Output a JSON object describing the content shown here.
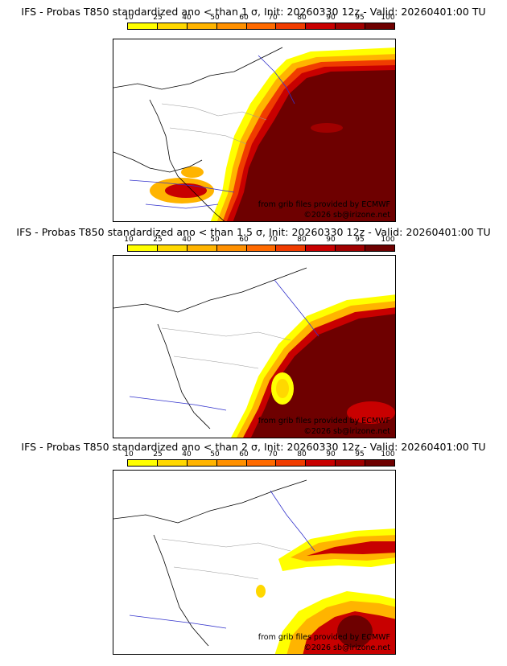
{
  "colorbar": {
    "ticks": [
      "10",
      "25",
      "40",
      "50",
      "60",
      "70",
      "80",
      "90",
      "95",
      "100"
    ],
    "colors": [
      "#ffff00",
      "#ffd800",
      "#ffb400",
      "#ff9000",
      "#ff6a00",
      "#f03c00",
      "#c80000",
      "#a00000",
      "#6e0000"
    ]
  },
  "panels": [
    {
      "title": "IFS - Probas T850  standardized ano < than 1 σ, Init: 20260330 12z - Valid: 20260401:00 TU",
      "threshold": "1 σ",
      "credit_source": "from grib files provided by ECMWF",
      "credit_site": "©2026 sb@irizone.net"
    },
    {
      "title": "IFS - Probas T850  standardized ano < than 1.5 σ, Init: 20260330 12z - Valid: 20260401:00 TU",
      "threshold": "1.5 σ",
      "credit_source": "from grib files provided by ECMWF",
      "credit_site": "©2026 sb@irizone.net"
    },
    {
      "title": "IFS - Probas T850  standardized ano < than 2 σ, Init: 20260330 12z - Valid: 20260401:00 TU",
      "threshold": "2 σ",
      "credit_source": "from grib files provided by ECMWF",
      "credit_site": "©2026 sb@irizone.net"
    }
  ]
}
